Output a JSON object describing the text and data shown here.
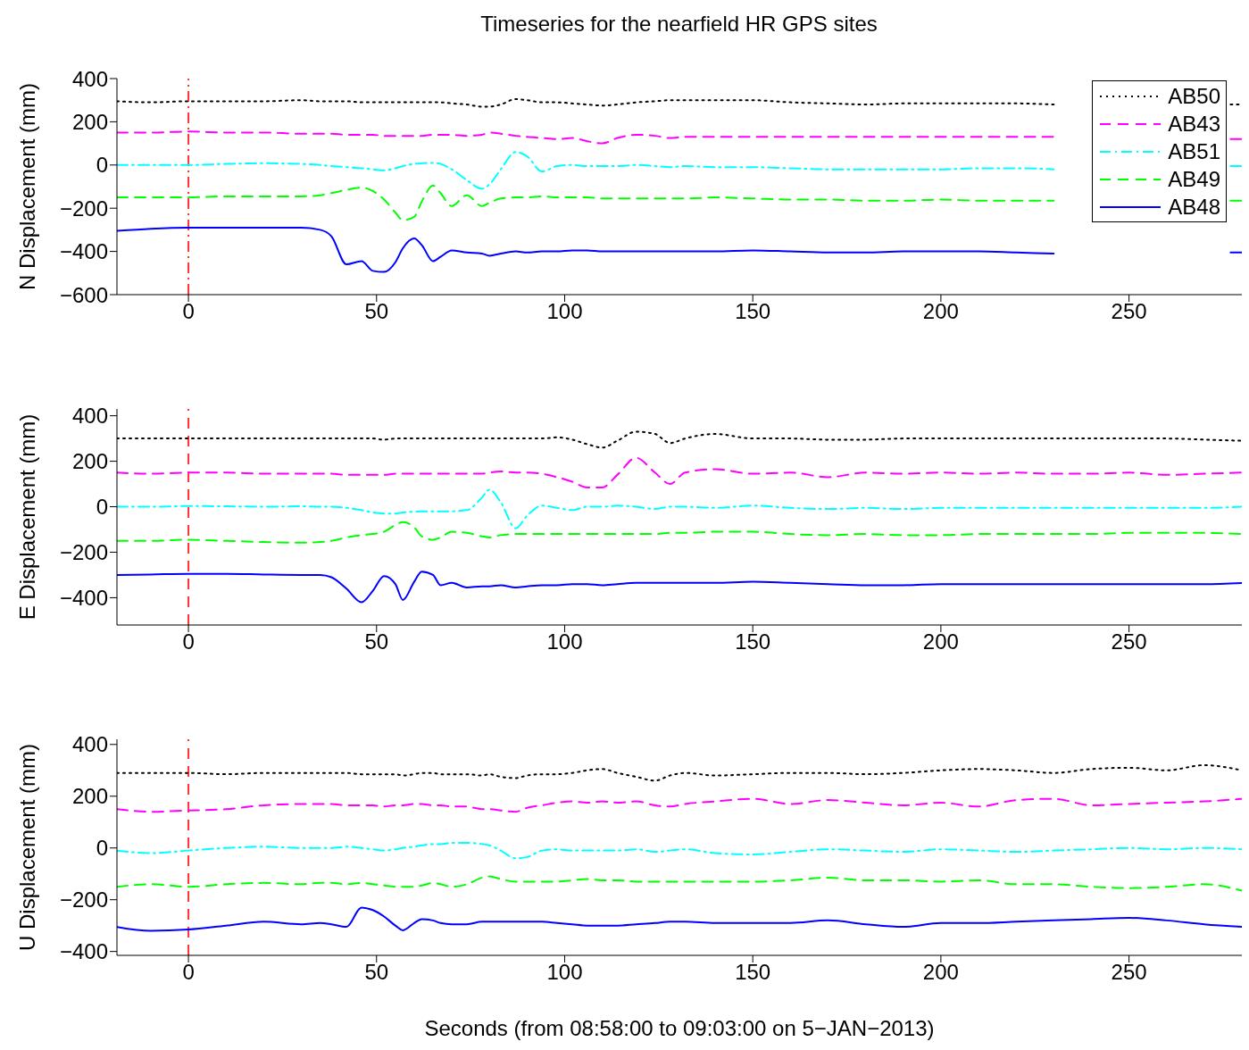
{
  "chart_data": [
    {
      "type": "line",
      "title": "Timeseries for the nearfield HR GPS sites",
      "ylabel": "N Displacement (mm)",
      "xlim": [
        -19,
        280
      ],
      "xticks": [
        0,
        50,
        100,
        150,
        200,
        250
      ],
      "ylim": [
        -600,
        400
      ],
      "yticks": [
        -600,
        -400,
        -200,
        0,
        200,
        400
      ],
      "grid": false,
      "legend": "top right",
      "x": [
        -19,
        -10,
        0,
        10,
        20,
        30,
        35,
        38,
        42,
        46,
        49,
        52,
        55,
        57,
        60,
        62,
        65,
        67,
        70,
        74,
        78,
        80,
        83,
        87,
        90,
        94,
        98,
        102,
        106,
        110,
        114,
        119,
        124,
        128,
        132,
        140,
        150,
        160,
        170,
        180,
        190,
        200,
        210,
        220,
        230,
        240,
        250,
        260,
        277,
        280
      ],
      "series": [
        {
          "name": "AB50",
          "color": "#000000",
          "line_style": "dotted",
          "values": [
            295,
            290,
            295,
            295,
            295,
            300,
            295,
            295,
            295,
            290,
            290,
            290,
            290,
            290,
            290,
            290,
            290,
            290,
            285,
            280,
            270,
            270,
            280,
            305,
            300,
            290,
            290,
            285,
            280,
            275,
            280,
            290,
            295,
            300,
            300,
            300,
            300,
            290,
            285,
            280,
            285,
            285,
            285,
            285,
            280,
            null,
            null,
            null,
            280,
            280
          ]
        },
        {
          "name": "AB43",
          "color": "#ff00ff",
          "line_style": "dashed",
          "values": [
            150,
            150,
            155,
            150,
            150,
            145,
            145,
            145,
            140,
            140,
            140,
            135,
            135,
            135,
            135,
            135,
            140,
            140,
            140,
            135,
            140,
            150,
            145,
            135,
            130,
            125,
            120,
            125,
            110,
            100,
            125,
            140,
            135,
            125,
            130,
            130,
            130,
            130,
            130,
            130,
            130,
            130,
            130,
            130,
            130,
            null,
            null,
            null,
            120,
            120
          ]
        },
        {
          "name": "AB51",
          "color": "#00ffff",
          "line_style": "dashdot",
          "values": [
            0,
            0,
            0,
            5,
            8,
            5,
            0,
            -5,
            -10,
            -15,
            -20,
            -25,
            -15,
            -5,
            5,
            8,
            10,
            5,
            -20,
            -70,
            -110,
            -90,
            -20,
            60,
            40,
            -30,
            -5,
            0,
            -5,
            -5,
            -5,
            0,
            -5,
            -10,
            -5,
            -10,
            -10,
            -15,
            -20,
            -20,
            -20,
            -20,
            -15,
            -15,
            -20,
            null,
            null,
            null,
            -5,
            -5
          ]
        },
        {
          "name": "AB49",
          "color": "#00ff00",
          "line_style": "dashed",
          "values": [
            -150,
            -150,
            -150,
            -145,
            -145,
            -145,
            -140,
            -130,
            -115,
            -105,
            -120,
            -160,
            -220,
            -255,
            -240,
            -170,
            -95,
            -130,
            -190,
            -140,
            -190,
            -175,
            -155,
            -150,
            -150,
            -145,
            -150,
            -150,
            -150,
            -155,
            -155,
            -155,
            -155,
            -155,
            -155,
            -150,
            -155,
            -160,
            -160,
            -165,
            -165,
            -160,
            -165,
            -165,
            -165,
            null,
            null,
            null,
            -165,
            -165
          ]
        },
        {
          "name": "AB48",
          "color": "#0000ff",
          "line_style": "solid",
          "values": [
            -305,
            -295,
            -290,
            -290,
            -290,
            -290,
            -300,
            -330,
            -460,
            -445,
            -490,
            -495,
            -450,
            -385,
            -340,
            -370,
            -445,
            -425,
            -395,
            -405,
            -410,
            -420,
            -410,
            -400,
            -405,
            -400,
            -400,
            -395,
            -395,
            -400,
            -400,
            -400,
            -400,
            -400,
            -400,
            -400,
            -395,
            -400,
            -405,
            -405,
            -400,
            -400,
            -400,
            -405,
            -410,
            null,
            null,
            null,
            -405,
            -405
          ]
        }
      ],
      "ref_lines": [
        {
          "axis": "x",
          "value": 0,
          "color": "#ff3333",
          "line_style": "dashdot"
        }
      ]
    },
    {
      "type": "line",
      "ylabel": "E Displacement (mm)",
      "xlim": [
        -19,
        280
      ],
      "xticks": [
        0,
        50,
        100,
        150,
        200,
        250
      ],
      "ylim": [
        -520,
        430
      ],
      "yticks": [
        -400,
        -200,
        0,
        200,
        400
      ],
      "grid": false,
      "x": [
        -19,
        -10,
        0,
        10,
        20,
        30,
        35,
        38,
        42,
        46,
        49,
        52,
        55,
        57,
        60,
        62,
        65,
        67,
        70,
        74,
        78,
        80,
        83,
        87,
        90,
        94,
        98,
        102,
        106,
        110,
        114,
        119,
        124,
        128,
        132,
        140,
        150,
        160,
        170,
        180,
        190,
        200,
        210,
        220,
        230,
        240,
        250,
        260,
        270,
        280
      ],
      "series": [
        {
          "color": "#000000",
          "line_style": "dotted",
          "values": [
            300,
            300,
            300,
            300,
            300,
            300,
            300,
            300,
            300,
            300,
            300,
            295,
            300,
            300,
            300,
            300,
            300,
            300,
            300,
            300,
            300,
            300,
            300,
            300,
            300,
            300,
            305,
            295,
            275,
            260,
            290,
            330,
            320,
            280,
            300,
            320,
            300,
            300,
            295,
            295,
            300,
            300,
            300,
            300,
            300,
            300,
            300,
            300,
            295,
            290
          ]
        },
        {
          "color": "#ff00ff",
          "line_style": "dashed",
          "values": [
            150,
            145,
            150,
            150,
            145,
            145,
            145,
            145,
            140,
            140,
            140,
            140,
            145,
            145,
            145,
            145,
            145,
            145,
            145,
            145,
            145,
            150,
            155,
            150,
            150,
            145,
            130,
            110,
            85,
            85,
            140,
            215,
            150,
            100,
            150,
            165,
            145,
            150,
            130,
            150,
            145,
            150,
            145,
            150,
            145,
            145,
            150,
            140,
            145,
            150
          ]
        },
        {
          "color": "#00ffff",
          "line_style": "dashdot",
          "values": [
            0,
            0,
            3,
            2,
            0,
            2,
            0,
            0,
            -5,
            -15,
            -25,
            -30,
            -30,
            -25,
            -22,
            -20,
            -20,
            -20,
            -20,
            -15,
            40,
            75,
            20,
            -95,
            -40,
            5,
            -5,
            -15,
            0,
            0,
            5,
            0,
            -10,
            0,
            0,
            -5,
            5,
            -5,
            -10,
            -5,
            -10,
            -5,
            -5,
            -5,
            -5,
            -5,
            -5,
            -5,
            -5,
            0
          ]
        },
        {
          "color": "#00ff00",
          "line_style": "dashed",
          "values": [
            -150,
            -150,
            -145,
            -150,
            -155,
            -158,
            -155,
            -150,
            -135,
            -125,
            -120,
            -110,
            -80,
            -68,
            -90,
            -130,
            -145,
            -135,
            -110,
            -115,
            -130,
            -135,
            -125,
            -120,
            -120,
            -120,
            -120,
            -120,
            -120,
            -120,
            -120,
            -120,
            -120,
            -115,
            -115,
            -110,
            -110,
            -120,
            -125,
            -120,
            -125,
            -125,
            -120,
            -120,
            -120,
            -120,
            -115,
            -115,
            -115,
            -120
          ]
        },
        {
          "color": "#0000ff",
          "line_style": "solid",
          "values": [
            -300,
            -298,
            -295,
            -295,
            -298,
            -300,
            -300,
            -310,
            -360,
            -420,
            -370,
            -305,
            -340,
            -410,
            -330,
            -285,
            -300,
            -345,
            -335,
            -355,
            -350,
            -350,
            -345,
            -355,
            -350,
            -345,
            -345,
            -340,
            -340,
            -345,
            -340,
            -335,
            -335,
            -335,
            -335,
            -335,
            -330,
            -335,
            -340,
            -345,
            -345,
            -340,
            -340,
            -340,
            -340,
            -340,
            -340,
            -340,
            -340,
            -335
          ]
        }
      ],
      "ref_lines": [
        {
          "axis": "x",
          "value": 0,
          "color": "#ff3333",
          "line_style": "dashed"
        }
      ]
    },
    {
      "type": "line",
      "ylabel": "U Displacement (mm)",
      "xlabel": "Seconds (from 08:58:00 to 09:03:00 on 5−JAN−2013)",
      "xlim": [
        -19,
        280
      ],
      "xticks": [
        0,
        50,
        100,
        150,
        200,
        250
      ],
      "ylim": [
        -415,
        420
      ],
      "yticks": [
        -400,
        -200,
        0,
        200,
        400
      ],
      "grid": false,
      "x": [
        -19,
        -10,
        0,
        10,
        20,
        30,
        35,
        38,
        42,
        46,
        49,
        52,
        55,
        57,
        60,
        62,
        65,
        67,
        70,
        74,
        78,
        80,
        83,
        87,
        90,
        94,
        98,
        102,
        106,
        110,
        114,
        119,
        124,
        128,
        132,
        140,
        150,
        160,
        170,
        180,
        190,
        200,
        210,
        220,
        230,
        240,
        250,
        260,
        270,
        280
      ],
      "series": [
        {
          "color": "#000000",
          "line_style": "dotted",
          "values": [
            290,
            290,
            290,
            285,
            290,
            290,
            290,
            290,
            290,
            285,
            285,
            285,
            285,
            280,
            285,
            290,
            290,
            285,
            285,
            285,
            280,
            285,
            275,
            270,
            280,
            285,
            285,
            290,
            300,
            305,
            290,
            275,
            260,
            280,
            290,
            280,
            285,
            290,
            290,
            285,
            290,
            300,
            305,
            300,
            290,
            305,
            310,
            300,
            320,
            300
          ]
        },
        {
          "color": "#ff00ff",
          "line_style": "dashed",
          "values": [
            150,
            140,
            145,
            150,
            165,
            170,
            170,
            170,
            165,
            165,
            165,
            160,
            165,
            165,
            170,
            170,
            165,
            165,
            160,
            160,
            150,
            150,
            145,
            140,
            155,
            165,
            175,
            180,
            175,
            180,
            175,
            180,
            165,
            160,
            170,
            180,
            190,
            170,
            185,
            175,
            165,
            175,
            160,
            185,
            190,
            165,
            170,
            175,
            180,
            190
          ]
        },
        {
          "color": "#00ffff",
          "line_style": "dashdot",
          "values": [
            -10,
            -20,
            -10,
            0,
            5,
            0,
            0,
            0,
            5,
            0,
            -5,
            -10,
            -5,
            0,
            5,
            10,
            15,
            15,
            20,
            20,
            15,
            10,
            -10,
            -40,
            -35,
            -10,
            -5,
            -10,
            -10,
            -10,
            -10,
            -5,
            -15,
            -10,
            -5,
            -20,
            -25,
            -15,
            -5,
            -10,
            -15,
            -5,
            -10,
            -15,
            -10,
            -5,
            0,
            -5,
            0,
            -5
          ]
        },
        {
          "color": "#00ff00",
          "line_style": "dashed",
          "values": [
            -150,
            -140,
            -150,
            -140,
            -135,
            -140,
            -135,
            -135,
            -140,
            -135,
            -140,
            -145,
            -150,
            -150,
            -150,
            -145,
            -135,
            -140,
            -150,
            -140,
            -115,
            -110,
            -120,
            -130,
            -130,
            -130,
            -130,
            -125,
            -120,
            -125,
            -125,
            -130,
            -130,
            -130,
            -130,
            -130,
            -130,
            -125,
            -115,
            -125,
            -125,
            -130,
            -125,
            -140,
            -140,
            -150,
            -155,
            -150,
            -140,
            -165
          ]
        },
        {
          "color": "#0000ff",
          "line_style": "solid",
          "values": [
            -305,
            -320,
            -315,
            -300,
            -285,
            -295,
            -290,
            -295,
            -305,
            -230,
            -240,
            -265,
            -300,
            -318,
            -290,
            -275,
            -280,
            -290,
            -295,
            -295,
            -285,
            -285,
            -285,
            -285,
            -285,
            -285,
            -290,
            -295,
            -300,
            -300,
            -300,
            -295,
            -290,
            -285,
            -285,
            -290,
            -290,
            -290,
            -280,
            -295,
            -305,
            -290,
            -290,
            -285,
            -280,
            -275,
            -270,
            -280,
            -295,
            -305
          ]
        }
      ],
      "ref_lines": [
        {
          "axis": "x",
          "value": 0,
          "color": "#ff3333",
          "line_style": "dashed"
        }
      ]
    }
  ]
}
